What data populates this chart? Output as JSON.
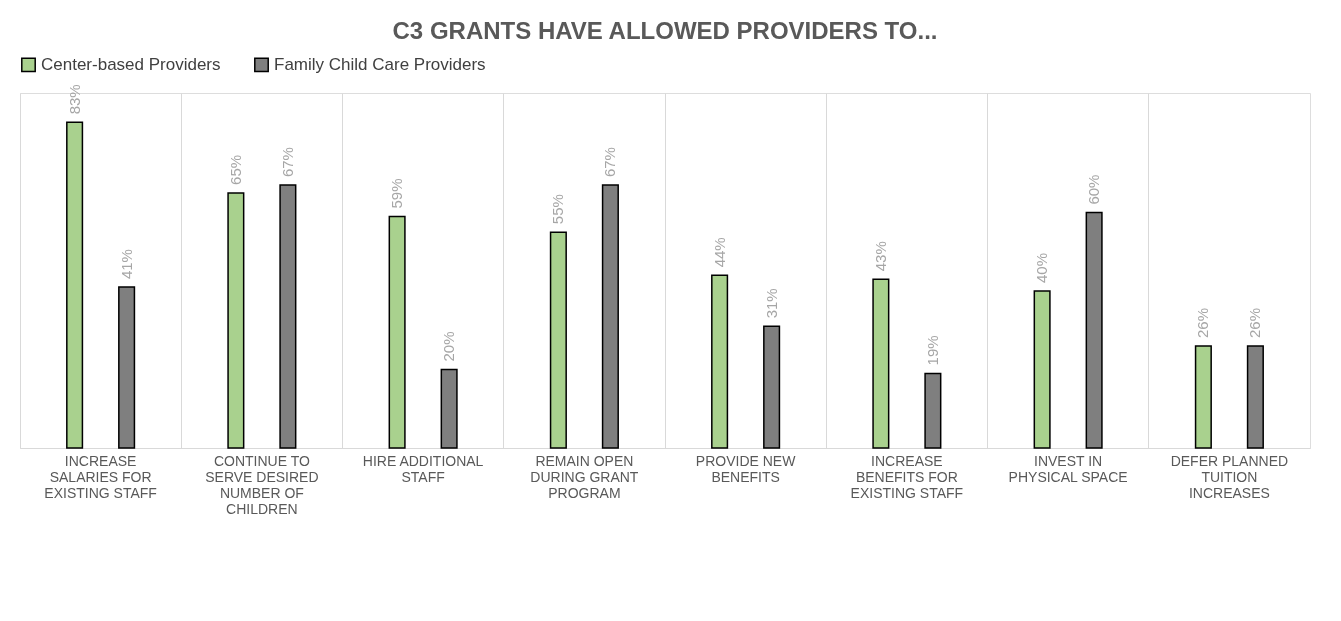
{
  "chart_data": {
    "type": "bar",
    "title": "C3 GRANTS HAVE ALLOWED PROVIDERS TO...",
    "categories": [
      "INCREASE SALARIES FOR EXISTING STAFF",
      "CONTINUE TO SERVE DESIRED NUMBER OF CHILDREN",
      "HIRE ADDITIONAL STAFF",
      "REMAIN OPEN DURING GRANT PROGRAM",
      "PROVIDE NEW BENEFITS",
      "INCREASE BENEFITS FOR EXISTING STAFF",
      "INVEST IN PHYSICAL SPACE",
      "DEFER PLANNED TUITION INCREASES"
    ],
    "series": [
      {
        "name": "Center-based Providers",
        "color": "#a9d18e",
        "values": [
          83,
          65,
          59,
          55,
          44,
          43,
          40,
          26
        ],
        "value_labels": [
          "83%",
          "65%",
          "59%",
          "55%",
          "44%",
          "43%",
          "40%",
          "26%"
        ]
      },
      {
        "name": "Family Child Care Providers",
        "color": "#7f7f7f",
        "values": [
          41,
          67,
          20,
          67,
          31,
          19,
          60,
          26
        ],
        "value_labels": [
          "41%",
          "67%",
          "20%",
          "67%",
          "31%",
          "19%",
          "60%",
          "26%"
        ]
      }
    ],
    "grid": "x",
    "legend": "top"
  }
}
